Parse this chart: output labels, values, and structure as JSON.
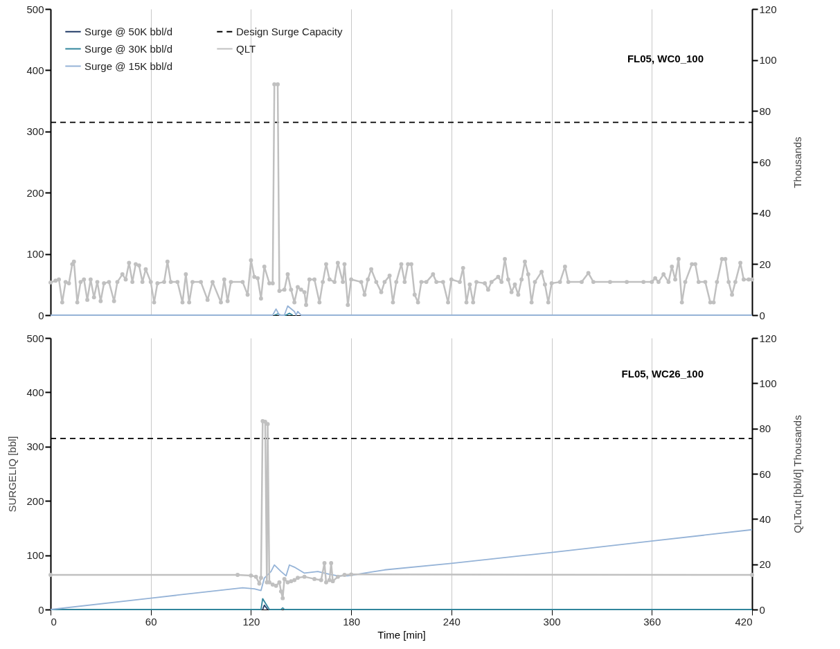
{
  "chart_data": [
    {
      "type": "line",
      "title": "FL05, WC0_100",
      "y2label": "Thousands",
      "xlim": [
        0,
        420
      ],
      "xticks": [
        0,
        60,
        120,
        180,
        240,
        300,
        360,
        420
      ],
      "ylim": [
        0,
        500
      ],
      "yticks": [
        0,
        100,
        200,
        300,
        400,
        500
      ],
      "y2lim": [
        0,
        120
      ],
      "y2ticks": [
        0,
        20,
        40,
        60,
        80,
        100,
        120
      ],
      "grid": "x",
      "legend": "top left",
      "tick_labels": "y",
      "series": [
        {
          "name": "Surge @ 50K bbl/d",
          "color": "#1f3864"
        },
        {
          "name": "Surge @ 30K bbl/d",
          "color": "#31859c",
          "x": [
            134,
            136,
            138,
            141,
            143,
            145
          ],
          "values": [
            0,
            2,
            0,
            0,
            3,
            0
          ]
        },
        {
          "name": "Surge @ 15K bbl/d",
          "color": "#95b3d7",
          "x": [
            0,
            133,
            135,
            137,
            140,
            142,
            146,
            147,
            148,
            150,
            420
          ],
          "values": [
            0,
            0,
            10,
            0,
            0,
            15,
            6,
            0,
            6,
            0,
            0
          ]
        },
        {
          "name": "Design Surge Capacity",
          "color": "#000000",
          "line_style": "dashed",
          "x": [
            0,
            420
          ],
          "values": [
            315,
            315
          ]
        },
        {
          "name": "QLT",
          "color": "#c0c0c0",
          "axis": "y2",
          "marker": "circle",
          "x": [
            0,
            3,
            5,
            7,
            9,
            11,
            13,
            14,
            16,
            18,
            20,
            22,
            24,
            26,
            28,
            30,
            32,
            35,
            38,
            40,
            43,
            45,
            47,
            49,
            51,
            53,
            55,
            57,
            60,
            62,
            64,
            68,
            70,
            72,
            76,
            79,
            81,
            83,
            85,
            90,
            94,
            97,
            102,
            104,
            106,
            108,
            115,
            118,
            120,
            122,
            124,
            126,
            128,
            131,
            133,
            134,
            136,
            137,
            140,
            142,
            144,
            146,
            148,
            150,
            152,
            153,
            155,
            158,
            161,
            163,
            165,
            167,
            170,
            172,
            175,
            176,
            178,
            180,
            186,
            188,
            190,
            192,
            195,
            198,
            200,
            203,
            205,
            207,
            210,
            212,
            214,
            216,
            218,
            220,
            222,
            225,
            229,
            231,
            235,
            238,
            240,
            245,
            247,
            249,
            251,
            253,
            255,
            260,
            262,
            264,
            268,
            270,
            272,
            274,
            276,
            278,
            280,
            282,
            284,
            286,
            288,
            290,
            294,
            296,
            298,
            300,
            305,
            308,
            310,
            318,
            322,
            325,
            335,
            345,
            355,
            360,
            362,
            364,
            367,
            370,
            372,
            374,
            376,
            378,
            380,
            384,
            386,
            388,
            392,
            395,
            397,
            399,
            402,
            404,
            406,
            408,
            410,
            413,
            415,
            418,
            420
          ],
          "values": [
            12.8,
            13.5,
            14,
            5,
            13,
            12.5,
            20,
            21,
            5,
            13,
            14,
            6,
            14,
            7,
            13,
            5.5,
            12.5,
            13,
            5.5,
            13,
            16,
            14,
            20.5,
            13,
            20,
            19.5,
            13,
            18,
            13,
            5,
            12.5,
            13,
            21,
            13,
            13,
            5,
            16,
            5,
            13,
            13,
            6,
            13,
            5,
            14,
            5.5,
            13,
            13,
            8,
            21.5,
            15,
            14.5,
            6.5,
            19,
            12.5,
            12.5,
            90.5,
            90.5,
            9.5,
            10,
            16,
            10,
            5,
            11,
            10,
            9,
            4,
            14,
            14,
            5,
            13,
            20,
            14,
            13,
            20.5,
            13,
            20,
            4,
            14,
            13,
            8,
            14,
            18,
            13,
            9,
            13,
            15.5,
            5,
            13,
            20,
            13,
            20,
            20,
            8,
            5,
            13,
            13,
            16,
            13,
            13,
            5,
            14,
            13,
            18.5,
            5,
            12,
            5,
            13,
            12.5,
            10,
            13,
            15,
            13,
            22,
            14,
            9,
            12,
            8,
            14,
            21,
            16,
            5,
            13,
            17,
            12,
            5,
            12.5,
            13,
            19,
            13,
            13,
            16.5,
            13,
            13,
            13,
            13,
            13,
            14.5,
            13,
            16,
            13,
            19,
            14,
            22,
            5,
            13,
            20,
            20,
            13,
            13,
            5,
            5,
            13,
            22,
            22,
            13,
            8,
            13,
            20.5,
            14,
            14,
            14
          ]
        }
      ]
    },
    {
      "type": "line",
      "title": "FL05, WC26_100",
      "xlabel": "Time [min]",
      "ylabel": "SURGELIQ [bbl]",
      "y2label": "QLTout [bbl/d]  Thousands",
      "xlim": [
        0,
        420
      ],
      "xticks": [
        0,
        60,
        120,
        180,
        240,
        300,
        360,
        420
      ],
      "ylim": [
        0,
        500
      ],
      "yticks": [
        0,
        100,
        200,
        300,
        400,
        500
      ],
      "y2lim": [
        0,
        120
      ],
      "y2ticks": [
        0,
        20,
        40,
        60,
        80,
        100,
        120
      ],
      "grid": "x",
      "series": [
        {
          "color": "#1f3864",
          "x": [
            127,
            128,
            130
          ],
          "values": [
            0,
            8,
            0
          ]
        },
        {
          "color": "#31859c",
          "x": [
            0,
            126,
            127,
            129,
            131,
            138,
            139,
            140,
            420
          ],
          "values": [
            0,
            0,
            20,
            10,
            0,
            0,
            3,
            0,
            0
          ]
        },
        {
          "color": "#95b3d7",
          "x": [
            0,
            60,
            115,
            122,
            126,
            128,
            132,
            134,
            138,
            141,
            143,
            146,
            152,
            160,
            167,
            172,
            178,
            190,
            200,
            240,
            300,
            360,
            420
          ],
          "values": [
            0,
            21,
            40,
            38,
            35,
            58,
            70,
            82,
            70,
            62,
            82,
            78,
            67,
            70,
            65,
            62,
            62,
            68,
            73,
            85,
            105,
            126,
            147
          ]
        },
        {
          "color": "#000000",
          "line_style": "dashed",
          "x": [
            0,
            420
          ],
          "values": [
            315,
            315
          ]
        },
        {
          "color": "#c0c0c0",
          "axis": "y2",
          "marker": "circle",
          "x": [
            0,
            112,
            120,
            123,
            125,
            126,
            127,
            128.5,
            129.5,
            130,
            131,
            133,
            135,
            137,
            138,
            139,
            140,
            142,
            144,
            146,
            148,
            152,
            158,
            162,
            164,
            165,
            167,
            168,
            169,
            172,
            176,
            180,
            420
          ],
          "values": [
            15.3,
            15.3,
            15,
            14.5,
            11.5,
            14,
            83.3,
            83,
            12,
            82,
            12,
            11,
            10.5,
            12,
            8,
            5,
            13.5,
            12,
            12.5,
            13,
            14,
            14.5,
            13.5,
            13,
            20.5,
            12,
            13,
            20.5,
            12.5,
            14.5,
            15.3,
            15.5,
            15.3
          ]
        }
      ]
    }
  ]
}
